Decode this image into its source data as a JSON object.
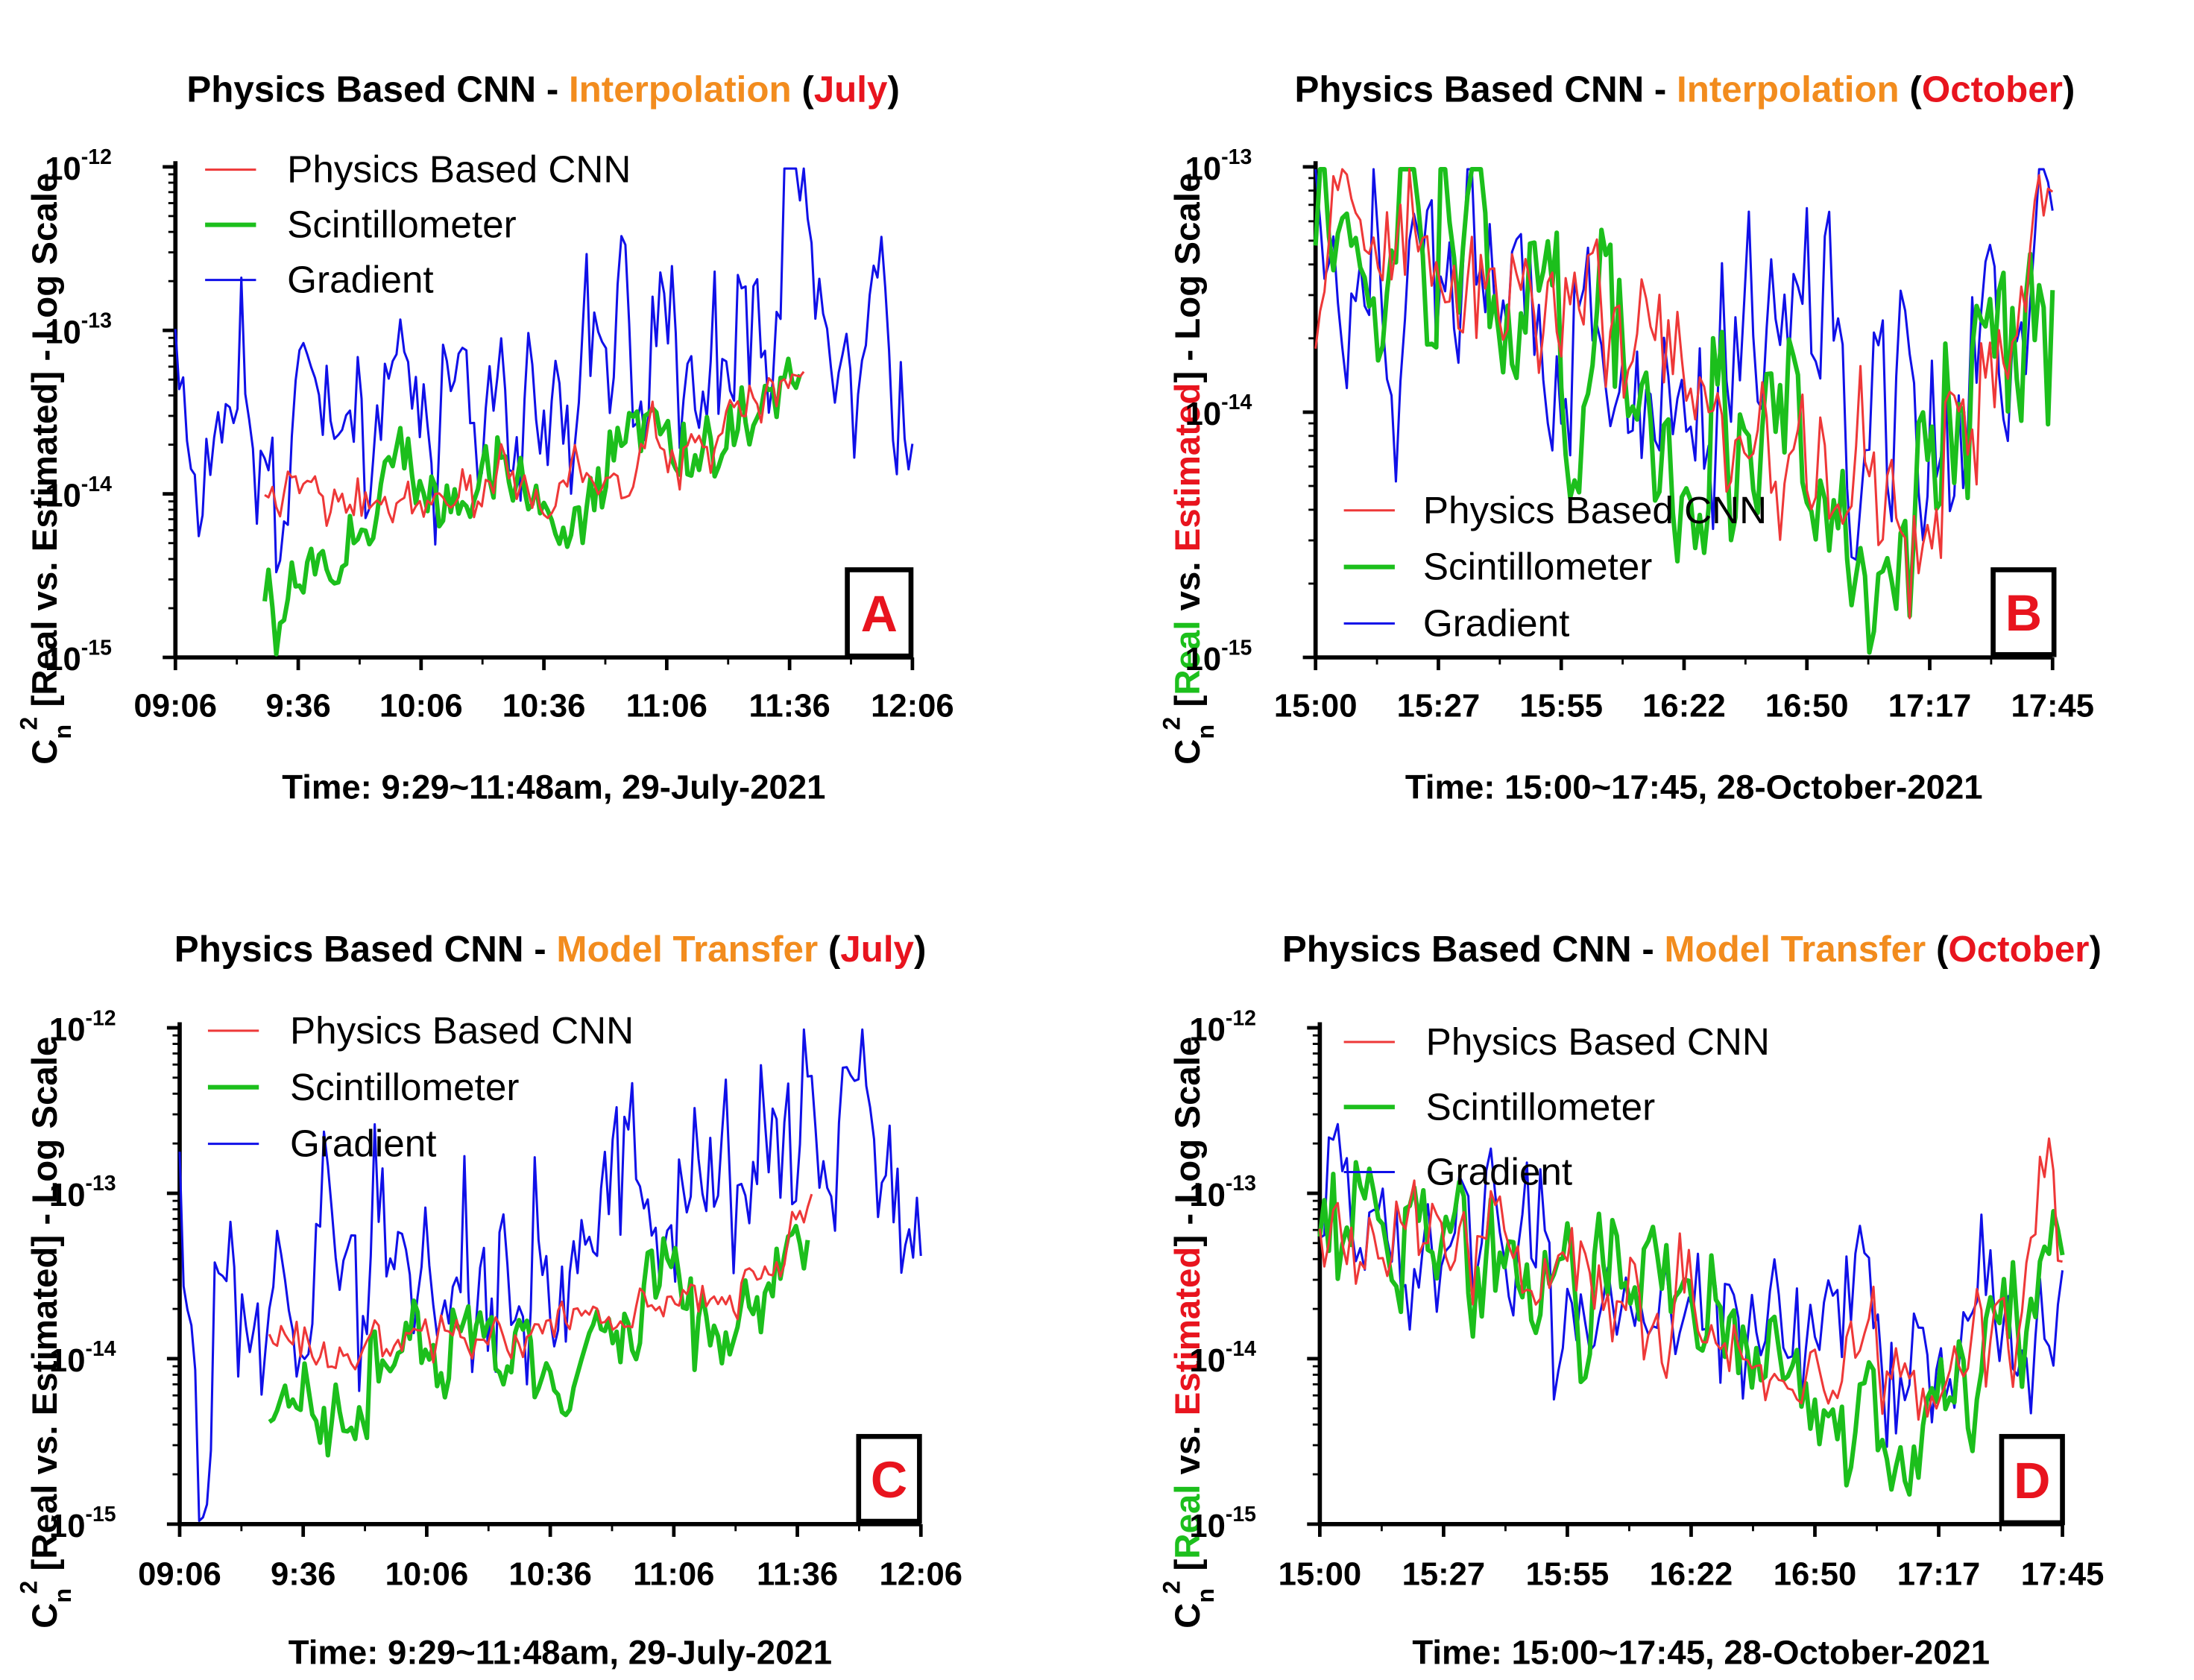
{
  "colors": {
    "cnn": "#ee3838",
    "scint": "#1cbf1c",
    "gradient": "#1010e8",
    "title_method": "#f28c1e",
    "title_month": "#e8141e",
    "axis": "#000000",
    "badge_text": "#e8141e"
  },
  "chart_data": [
    {
      "id": "A",
      "type": "line",
      "log_y": true,
      "title_parts": [
        "Physics Based CNN - ",
        "Interpolation",
        " (",
        "July",
        ")"
      ],
      "xlabel": "Time: 9:29~11:48am, 29-July-2021",
      "ylabel_parts": [
        "C",
        "n",
        "2",
        " [",
        "Real",
        " vs. ",
        "Estimated",
        "] - Log Scale"
      ],
      "ylabel_colored": false,
      "xticks": [
        "09:06",
        "9:36",
        "10:06",
        "10:36",
        "11:06",
        "11:36",
        "12:06"
      ],
      "yticks": [
        {
          "base": "10",
          "exp": "-12"
        },
        {
          "base": "10",
          "exp": "-13"
        },
        {
          "base": "10",
          "exp": "-14"
        },
        {
          "base": "10",
          "exp": "-15"
        }
      ],
      "x_range_min": [
        0,
        190
      ],
      "ylim_exp": [
        -15,
        -12
      ],
      "legend": [
        "Physics Based CNN",
        "Scintillometer",
        "Gradient"
      ],
      "legend_placement": "top-left",
      "badge": "A",
      "series": [
        {
          "name": "Physics Based CNN",
          "x_range_min": [
            23,
            162
          ],
          "anchors": [
            [
              23,
              9.5e-15
            ],
            [
              50,
              8e-15
            ],
            [
              70,
              9e-15
            ],
            [
              95,
              1.1e-14
            ],
            [
              115,
              1.4e-14
            ],
            [
              135,
              1.8e-14
            ],
            [
              150,
              2.6e-14
            ],
            [
              162,
              6e-14
            ]
          ],
          "noise": 0.09
        },
        {
          "name": "Scintillometer",
          "x_range_min": [
            23,
            161
          ],
          "anchors": [
            [
              23,
              2.8e-15
            ],
            [
              38,
              4.5e-15
            ],
            [
              48,
              6e-15
            ],
            [
              58,
              1.6e-14
            ],
            [
              75,
              1.2e-14
            ],
            [
              90,
              1.3e-14
            ],
            [
              98,
              6e-15
            ],
            [
              110,
              1.2e-14
            ],
            [
              118,
              2.6e-14
            ],
            [
              130,
              2e-14
            ],
            [
              142,
              2e-14
            ],
            [
              152,
              3.2e-14
            ],
            [
              161,
              6e-14
            ]
          ],
          "noise": 0.14
        },
        {
          "name": "Gradient",
          "x_range_min": [
            0,
            190
          ],
          "anchors": [
            [
              0,
              1.5e-13
            ],
            [
              2,
              5e-14
            ],
            [
              6,
              6e-15
            ],
            [
              12,
              2.5e-14
            ],
            [
              25,
              2e-14
            ],
            [
              40,
              3.5e-14
            ],
            [
              60,
              3e-14
            ],
            [
              85,
              3.5e-14
            ],
            [
              105,
              4e-14
            ],
            [
              125,
              6e-14
            ],
            [
              145,
              8e-14
            ],
            [
              158,
              2e-13
            ],
            [
              170,
              1.1e-13
            ],
            [
              182,
              1.6e-13
            ],
            [
              190,
              7e-14
            ]
          ],
          "noise": 0.3
        }
      ]
    },
    {
      "id": "B",
      "type": "line",
      "log_y": true,
      "title_parts": [
        "Physics Based CNN - ",
        "Interpolation",
        " (",
        "October",
        ")"
      ],
      "xlabel": "Time: 15:00~17:45, 28-October-2021",
      "ylabel_parts": [
        "C",
        "n",
        "2",
        " [",
        "Real",
        " vs. ",
        "Estimated",
        "] - Log Scale"
      ],
      "ylabel_colored": true,
      "xticks": [
        "15:00",
        "15:27",
        "15:55",
        "16:22",
        "16:50",
        "17:17",
        "17:45"
      ],
      "yticks": [
        {
          "base": "10",
          "exp": "-13"
        },
        {
          "base": "10",
          "exp": "-14"
        },
        {
          "base": "10",
          "exp": "-15"
        }
      ],
      "x_range_min": [
        0,
        165
      ],
      "ylim_exp": [
        -15,
        -13
      ],
      "legend": [
        "Physics Based CNN",
        "Scintillometer",
        "Gradient"
      ],
      "legend_placement": "bottom-left",
      "badge": "B",
      "series": [
        {
          "name": "Physics Based CNN",
          "x_range_min": [
            0,
            165
          ],
          "anchors": [
            [
              0,
              5e-14
            ],
            [
              30,
              4e-14
            ],
            [
              55,
              2.8e-14
            ],
            [
              80,
              1.7e-14
            ],
            [
              95,
              1.1e-14
            ],
            [
              110,
              6e-15
            ],
            [
              125,
              4.5e-15
            ],
            [
              140,
              5.5e-15
            ],
            [
              152,
              1.5e-14
            ],
            [
              160,
              2.8e-14
            ],
            [
              162,
              6e-14
            ],
            [
              165,
              5e-14
            ]
          ],
          "noise": 0.18
        },
        {
          "name": "Scintillometer",
          "x_range_min": [
            0,
            165
          ],
          "anchors": [
            [
              0,
              6e-14
            ],
            [
              30,
              4e-14
            ],
            [
              55,
              2.8e-14
            ],
            [
              75,
              1.9e-14
            ],
            [
              90,
              1.2e-14
            ],
            [
              105,
              7e-15
            ],
            [
              115,
              3.5e-15
            ],
            [
              123,
              2.8e-15
            ],
            [
              133,
              4e-15
            ],
            [
              145,
              8e-15
            ],
            [
              155,
              1.8e-14
            ],
            [
              165,
              2.8e-14
            ]
          ],
          "noise": 0.22
        },
        {
          "name": "Gradient",
          "x_range_min": [
            0,
            165
          ],
          "anchors": [
            [
              0,
              6e-14
            ],
            [
              3,
              9e-14
            ],
            [
              10,
              3e-14
            ],
            [
              30,
              4e-14
            ],
            [
              55,
              2.5e-14
            ],
            [
              80,
              1.6e-14
            ],
            [
              100,
              1.4e-14
            ],
            [
              115,
              1.3e-14
            ],
            [
              125,
              1e-14
            ],
            [
              140,
              1.3e-14
            ],
            [
              155,
              2e-14
            ],
            [
              165,
              2.5e-14
            ]
          ],
          "noise": 0.28
        }
      ]
    },
    {
      "id": "C",
      "type": "line",
      "log_y": true,
      "title_parts": [
        "Physics Based CNN - ",
        "Model Transfer",
        " (",
        "July",
        ")"
      ],
      "xlabel": "Time: 9:29~11:48am, 29-July-2021",
      "ylabel_parts": [
        "C",
        "n",
        "2",
        " [",
        "Real",
        " vs. ",
        "Estimated",
        "] - Log Scale"
      ],
      "ylabel_colored": false,
      "xticks": [
        "09:06",
        "9:36",
        "10:06",
        "10:36",
        "11:06",
        "11:36",
        "12:06"
      ],
      "yticks": [
        {
          "base": "10",
          "exp": "-12"
        },
        {
          "base": "10",
          "exp": "-13"
        },
        {
          "base": "10",
          "exp": "-14"
        },
        {
          "base": "10",
          "exp": "-15"
        }
      ],
      "x_range_min": [
        0,
        190
      ],
      "ylim_exp": [
        -15,
        -12
      ],
      "legend": [
        "Physics Based CNN",
        "Scintillometer",
        "Gradient"
      ],
      "legend_placement": "top-left",
      "badge": "C",
      "series": [
        {
          "name": "Physics Based CNN",
          "x_range_min": [
            23,
            162
          ],
          "anchors": [
            [
              23,
              1.3e-14
            ],
            [
              40,
              1.1e-14
            ],
            [
              60,
              1.2e-14
            ],
            [
              80,
              1.4e-14
            ],
            [
              100,
              1.6e-14
            ],
            [
              120,
              1.9e-14
            ],
            [
              140,
              2.6e-14
            ],
            [
              155,
              4.5e-14
            ],
            [
              162,
              1.1e-13
            ]
          ],
          "noise": 0.07
        },
        {
          "name": "Scintillometer",
          "x_range_min": [
            23,
            161
          ],
          "anchors": [
            [
              23,
              2.8e-15
            ],
            [
              38,
              4.5e-15
            ],
            [
              48,
              6e-15
            ],
            [
              58,
              1.5e-14
            ],
            [
              75,
              1.1e-14
            ],
            [
              90,
              1.2e-14
            ],
            [
              98,
              6e-15
            ],
            [
              110,
              1.2e-14
            ],
            [
              118,
              2.6e-14
            ],
            [
              130,
              2e-14
            ],
            [
              142,
              2e-14
            ],
            [
              152,
              3.2e-14
            ],
            [
              161,
              6e-14
            ]
          ],
          "noise": 0.14
        },
        {
          "name": "Gradient",
          "x_range_min": [
            0,
            190
          ],
          "anchors": [
            [
              0,
              1.5e-13
            ],
            [
              2,
              5e-14
            ],
            [
              6,
              6e-15
            ],
            [
              12,
              2.5e-14
            ],
            [
              25,
              2e-14
            ],
            [
              40,
              3.5e-14
            ],
            [
              60,
              3e-14
            ],
            [
              85,
              3.5e-14
            ],
            [
              105,
              4e-14
            ],
            [
              125,
              6e-14
            ],
            [
              145,
              8e-14
            ],
            [
              158,
              2.5e-13
            ],
            [
              170,
              1.1e-13
            ],
            [
              182,
              1.6e-13
            ],
            [
              190,
              7e-14
            ]
          ],
          "noise": 0.3
        }
      ]
    },
    {
      "id": "D",
      "type": "line",
      "log_y": true,
      "title_parts": [
        "Physics Based CNN - ",
        "Model Transfer",
        " (",
        "October",
        ")"
      ],
      "xlabel": "Time: 15:00~17:45, 28-October-2021",
      "ylabel_parts": [
        "C",
        "n",
        "2",
        " [",
        "Real",
        " vs. ",
        "Estimated",
        "] - Log Scale"
      ],
      "ylabel_colored": true,
      "xticks": [
        "15:00",
        "15:27",
        "15:55",
        "16:22",
        "16:50",
        "17:17",
        "17:45"
      ],
      "yticks": [
        {
          "base": "10",
          "exp": "-12"
        },
        {
          "base": "10",
          "exp": "-13"
        },
        {
          "base": "10",
          "exp": "-14"
        },
        {
          "base": "10",
          "exp": "-15"
        }
      ],
      "x_range_min": [
        0,
        165
      ],
      "ylim_exp": [
        -15,
        -12
      ],
      "legend": [
        "Physics Based CNN",
        "Scintillometer",
        "Gradient"
      ],
      "legend_placement": "top-left",
      "badge": "D",
      "series": [
        {
          "name": "Physics Based CNN",
          "x_range_min": [
            0,
            165
          ],
          "anchors": [
            [
              0,
              5e-14
            ],
            [
              30,
              4e-14
            ],
            [
              55,
              3e-14
            ],
            [
              80,
              1.8e-14
            ],
            [
              100,
              1.1e-14
            ],
            [
              120,
              7.5e-15
            ],
            [
              140,
              7.5e-15
            ],
            [
              150,
              1.5e-14
            ],
            [
              158,
              4e-14
            ],
            [
              162,
              9e-14
            ],
            [
              165,
              8e-14
            ]
          ],
          "noise": 0.18
        },
        {
          "name": "Scintillometer",
          "x_range_min": [
            0,
            165
          ],
          "anchors": [
            [
              0,
              6e-14
            ],
            [
              30,
              4.5e-14
            ],
            [
              55,
              3e-14
            ],
            [
              75,
              2e-14
            ],
            [
              95,
              1.2e-14
            ],
            [
              110,
              6e-15
            ],
            [
              120,
              3.5e-15
            ],
            [
              125,
              2.5e-15
            ],
            [
              135,
              4e-15
            ],
            [
              145,
              8e-15
            ],
            [
              155,
              1.8e-14
            ],
            [
              165,
              2.8e-14
            ]
          ],
          "noise": 0.2
        },
        {
          "name": "Gradient",
          "x_range_min": [
            0,
            165
          ],
          "anchors": [
            [
              0,
              7e-14
            ],
            [
              3,
              1.2e-13
            ],
            [
              10,
              3.5e-14
            ],
            [
              30,
              4.5e-14
            ],
            [
              55,
              3e-14
            ],
            [
              80,
              2e-14
            ],
            [
              100,
              1.5e-14
            ],
            [
              115,
              1.5e-14
            ],
            [
              125,
              1e-14
            ],
            [
              140,
              1.2e-14
            ],
            [
              155,
              2.2e-14
            ],
            [
              165,
              2.5e-14
            ]
          ],
          "noise": 0.25
        }
      ]
    }
  ]
}
